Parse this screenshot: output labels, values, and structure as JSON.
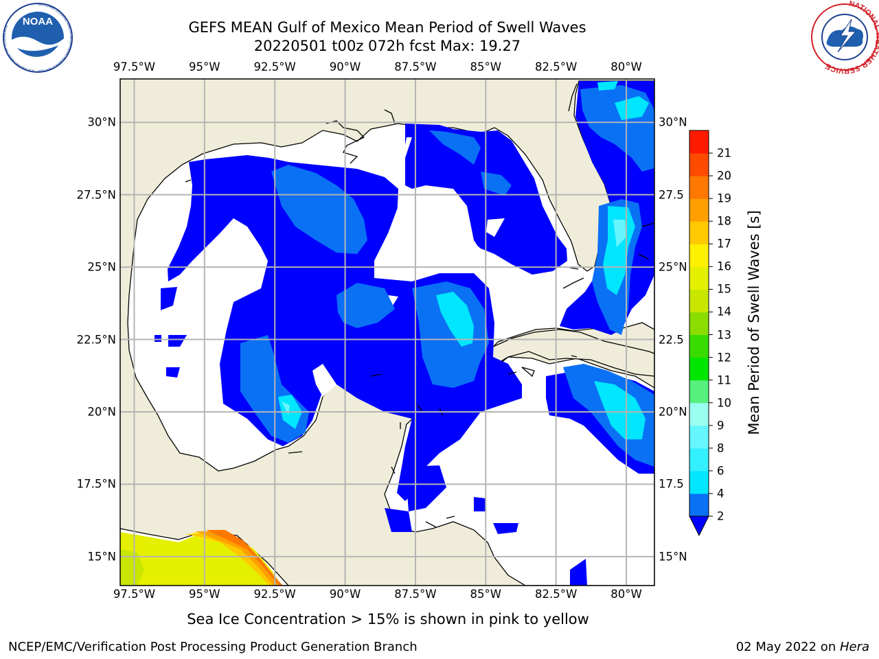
{
  "title": {
    "line1": "GEFS MEAN Gulf of Mexico Mean Period of Swell Waves",
    "line2": "20220501 t00z 072h fcst   Max: 19.27"
  },
  "map": {
    "lon_ticks": [
      "97.5°W",
      "95°W",
      "92.5°W",
      "90°W",
      "87.5°W",
      "85°W",
      "82.5°W",
      "80°W"
    ],
    "lat_ticks": [
      "30°N",
      "27.5°N",
      "25°N",
      "22.5°N",
      "20°N",
      "17.5°N",
      "15°N"
    ],
    "lat_ticks_right": [
      "30°N",
      "27.5",
      "25°N",
      "22.5",
      "20°N",
      "17.5",
      "15°N"
    ],
    "lon_range": [
      -98,
      -79
    ],
    "lat_range": [
      14,
      31.5
    ],
    "colors": {
      "land": "#efedd9",
      "ocean": "#ffffff",
      "grid": "#b4b4b4"
    }
  },
  "colorbar": {
    "label": "Mean Period of Swell Waves [s]",
    "ticks": [
      "2",
      "4",
      "6",
      "8",
      "9",
      "10",
      "11",
      "12",
      "13",
      "14",
      "15",
      "16",
      "17",
      "18",
      "19",
      "20",
      "21"
    ],
    "levels": [
      2,
      4,
      6,
      8,
      9,
      10,
      11,
      12,
      13,
      14,
      15,
      16,
      17,
      18,
      19,
      20,
      21
    ],
    "colors": [
      "#0a71f5",
      "#00e6ff",
      "#33f0ff",
      "#66f6ff",
      "#9afff0",
      "#56f07e",
      "#00e600",
      "#38dc00",
      "#8bdc00",
      "#c8e600",
      "#e5ef00",
      "#fff000",
      "#ffc800",
      "#ffa000",
      "#ff7800",
      "#ff4b00",
      "#ff1a00"
    ],
    "under_color": "#0000ff"
  },
  "caption": "Sea Ice Concentration > 15% is shown in pink to yellow",
  "footer": {
    "left": "NCEP/EMC/Verification Post Processing Product Generation Branch",
    "right_date": "02 May 2022 on ",
    "right_host": "Hera"
  },
  "logos": {
    "noaa": "NOAA",
    "nws_ring": "NATIONAL WEATHER SERVICE",
    "noaa_ring": "NATIONAL OCEANIC AND ATMOSPHERIC ADMINISTRATION · U.S. DEPARTMENT OF COMMERCE"
  }
}
